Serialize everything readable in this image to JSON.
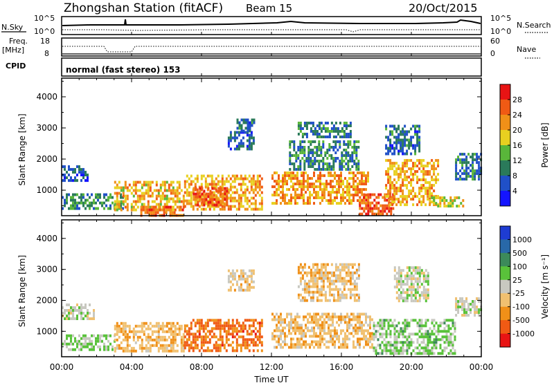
{
  "header": {
    "station": "Zhongshan Station (fitACF)",
    "beam": "Beam 15",
    "date": "20/Oct/2015"
  },
  "top_panels": {
    "nsky_label": "N.Sky",
    "nsky_ticks": [
      "10^5",
      "10^0"
    ],
    "nsearch_label": "N.Search",
    "freq_label": "Freq.",
    "freq_unit": "[MHz]",
    "freq_ticks": [
      "18",
      "8"
    ],
    "nave_label": "Nave",
    "nave_ticks": [
      "60",
      "0"
    ],
    "cpid_label": "CPID",
    "cpid_text": "normal (fast stereo) 153"
  },
  "x_axis": {
    "label": "Time UT",
    "ticks": [
      "00:00",
      "04:00",
      "08:00",
      "12:00",
      "16:00",
      "20:00",
      "00:00"
    ]
  },
  "chart_data": [
    {
      "type": "heatmap",
      "ylabel": "Slant Range [km]",
      "xlabel": "Time UT",
      "ylim": [
        180,
        4600
      ],
      "yticks": [
        1000,
        2000,
        3000,
        4000
      ],
      "xlim_hours": [
        0,
        24
      ],
      "colorbar": {
        "label": "Power [dB]",
        "ticks": [
          "4",
          "8",
          "12",
          "16",
          "20",
          "24",
          "28"
        ],
        "colors": [
          "#1414ff",
          "#2050c8",
          "#2a7a5a",
          "#59b63a",
          "#e8d020",
          "#f09018",
          "#f05a14",
          "#e81414"
        ],
        "range": [
          0,
          32
        ]
      },
      "regions": [
        {
          "t": [
            0.0,
            1.5
          ],
          "r": [
            1300,
            1800
          ],
          "level": 7
        },
        {
          "t": [
            0.0,
            3.5
          ],
          "r": [
            400,
            900
          ],
          "level": 11
        },
        {
          "t": [
            3.0,
            7.0
          ],
          "r": [
            350,
            1300
          ],
          "level": 20
        },
        {
          "t": [
            4.5,
            7.0
          ],
          "r": [
            180,
            500
          ],
          "level": 25
        },
        {
          "t": [
            7.0,
            11.5
          ],
          "r": [
            400,
            1500
          ],
          "level": 21
        },
        {
          "t": [
            7.5,
            9.5
          ],
          "r": [
            500,
            1100
          ],
          "level": 26
        },
        {
          "t": [
            9.5,
            11.0
          ],
          "r": [
            2300,
            2900
          ],
          "level": 7
        },
        {
          "t": [
            10.0,
            11.0
          ],
          "r": [
            2900,
            3300
          ],
          "level": 8
        },
        {
          "t": [
            12.0,
            17.5
          ],
          "r": [
            600,
            1600
          ],
          "level": 22
        },
        {
          "t": [
            13.0,
            17.0
          ],
          "r": [
            1700,
            2600
          ],
          "level": 10
        },
        {
          "t": [
            13.5,
            16.5
          ],
          "r": [
            2700,
            3200
          ],
          "level": 9
        },
        {
          "t": [
            17.0,
            19.0
          ],
          "r": [
            250,
            900
          ],
          "level": 27
        },
        {
          "t": [
            18.5,
            21.5
          ],
          "r": [
            500,
            2000
          ],
          "level": 21
        },
        {
          "t": [
            18.5,
            20.5
          ],
          "r": [
            2200,
            3100
          ],
          "level": 8
        },
        {
          "t": [
            21.0,
            23.0
          ],
          "r": [
            500,
            800
          ],
          "level": 17
        },
        {
          "t": [
            22.5,
            24.0
          ],
          "r": [
            1400,
            2200
          ],
          "level": 9
        }
      ]
    },
    {
      "type": "heatmap",
      "ylabel": "Slant Range [km]",
      "xlabel": "Time UT",
      "ylim": [
        180,
        4600
      ],
      "yticks": [
        1000,
        2000,
        3000,
        4000
      ],
      "xlim_hours": [
        0,
        24
      ],
      "colorbar": {
        "label": "Velocity [m s^-1]",
        "ticks": [
          "1000",
          "500",
          "100",
          "25",
          "-25",
          "-100",
          "-500",
          "-1000"
        ],
        "colors": [
          "#1e3cd2",
          "#2868a8",
          "#3c8a5a",
          "#59c23a",
          "#c8c8c0",
          "#f0c070",
          "#f09018",
          "#f05a14",
          "#e81414"
        ],
        "range": [
          -1200,
          1200
        ]
      },
      "regions": [
        {
          "t": [
            0.0,
            1.8
          ],
          "r": [
            1400,
            1900
          ],
          "velocity": 0
        },
        {
          "t": [
            0.0,
            3.0
          ],
          "r": [
            400,
            900
          ],
          "velocity": 150
        },
        {
          "t": [
            3.0,
            7.0
          ],
          "r": [
            350,
            1300
          ],
          "velocity": -350
        },
        {
          "t": [
            7.0,
            11.5
          ],
          "r": [
            400,
            1400
          ],
          "velocity": -700
        },
        {
          "t": [
            9.5,
            11.0
          ],
          "r": [
            2300,
            3000
          ],
          "velocity": -200
        },
        {
          "t": [
            12.0,
            17.8
          ],
          "r": [
            500,
            1600
          ],
          "velocity": -300
        },
        {
          "t": [
            13.5,
            17.0
          ],
          "r": [
            2000,
            3200
          ],
          "velocity": -250
        },
        {
          "t": [
            17.8,
            22.5
          ],
          "r": [
            300,
            1400
          ],
          "velocity": 200
        },
        {
          "t": [
            19.0,
            21.0
          ],
          "r": [
            2000,
            3100
          ],
          "velocity": 0
        },
        {
          "t": [
            22.5,
            24.0
          ],
          "r": [
            1500,
            2100
          ],
          "velocity": 0
        }
      ]
    }
  ]
}
